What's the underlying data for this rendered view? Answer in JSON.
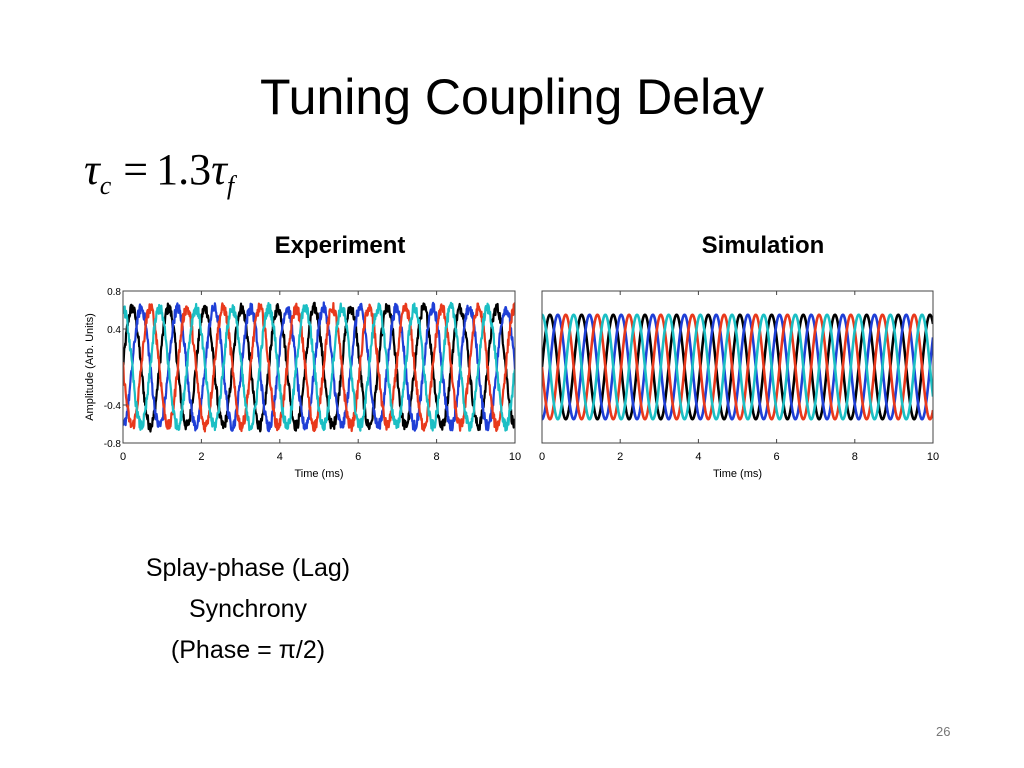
{
  "slide": {
    "title": "Tuning Coupling Delay",
    "equation": {
      "lhs_symbol": "τ",
      "lhs_subscript": "c",
      "operator": "=",
      "coefficient": "1.3",
      "rhs_symbol": "τ",
      "rhs_subscript": "f"
    },
    "caption_lines": [
      "Splay-phase (Lag)",
      "Synchrony",
      "(Phase = π/2)"
    ],
    "slide_number": "26"
  },
  "chart_data": [
    {
      "type": "line",
      "title": "Experiment",
      "xlabel": "Time (ms)",
      "ylabel": "Amplitude (Arb. Units)",
      "xlim": [
        0,
        10
      ],
      "ylim": [
        -0.8,
        0.8
      ],
      "xticks": [
        "0",
        "2",
        "4",
        "6",
        "8",
        "10"
      ],
      "yticks": [
        "0.8",
        "0.4",
        "-0.4",
        "-0.8"
      ],
      "grid": false,
      "legend": "none",
      "period_ms": 0.93,
      "amplitude": 0.62,
      "noise": 0.06,
      "series": [
        {
          "color": "#000000",
          "phase_deg": 0
        },
        {
          "color": "#1f3fd6",
          "phase_deg": 90
        },
        {
          "color": "#e8391c",
          "phase_deg": 180
        },
        {
          "color": "#1cbfc4",
          "phase_deg": 270
        }
      ]
    },
    {
      "type": "line",
      "title": "Simulation",
      "xlabel": "Time (ms)",
      "ylabel": "",
      "xlim": [
        0,
        10
      ],
      "ylim": [
        -0.8,
        0.8
      ],
      "xticks": [
        "0",
        "2",
        "4",
        "6",
        "8",
        "10"
      ],
      "yticks": [],
      "grid": false,
      "legend": "none",
      "period_ms": 0.81,
      "amplitude": 0.55,
      "noise": 0,
      "series": [
        {
          "color": "#000000",
          "phase_deg": 0
        },
        {
          "color": "#1f3fd6",
          "phase_deg": 90
        },
        {
          "color": "#e8391c",
          "phase_deg": 180
        },
        {
          "color": "#1cbfc4",
          "phase_deg": 270
        }
      ]
    }
  ]
}
